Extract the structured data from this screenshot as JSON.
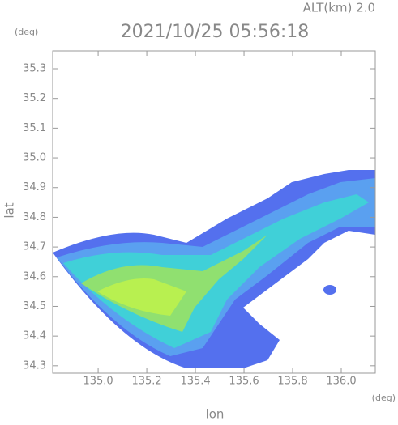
{
  "chart_data": {
    "type": "radar",
    "title": "2021/10/25 05:56:18",
    "altitude": "ALT(km) 2.0",
    "y_unit": "(deg)",
    "x_unit": "(deg)",
    "x_label": "lon",
    "y_label": "lat",
    "xlim": [
      134.813,
      136.14
    ],
    "ylim": [
      34.275,
      35.36
    ],
    "xticks": [
      {
        "value": 135,
        "label": "135.0"
      },
      135.2,
      135.4,
      135.6,
      135.8,
      {
        "value": 136,
        "label": "136.0"
      }
    ],
    "yticks": [
      34.3,
      34.4,
      34.5,
      34.6,
      34.7,
      34.8,
      34.9,
      {
        "value": 35,
        "label": "35.0"
      },
      35.1,
      35.2,
      35.3
    ]
  }
}
